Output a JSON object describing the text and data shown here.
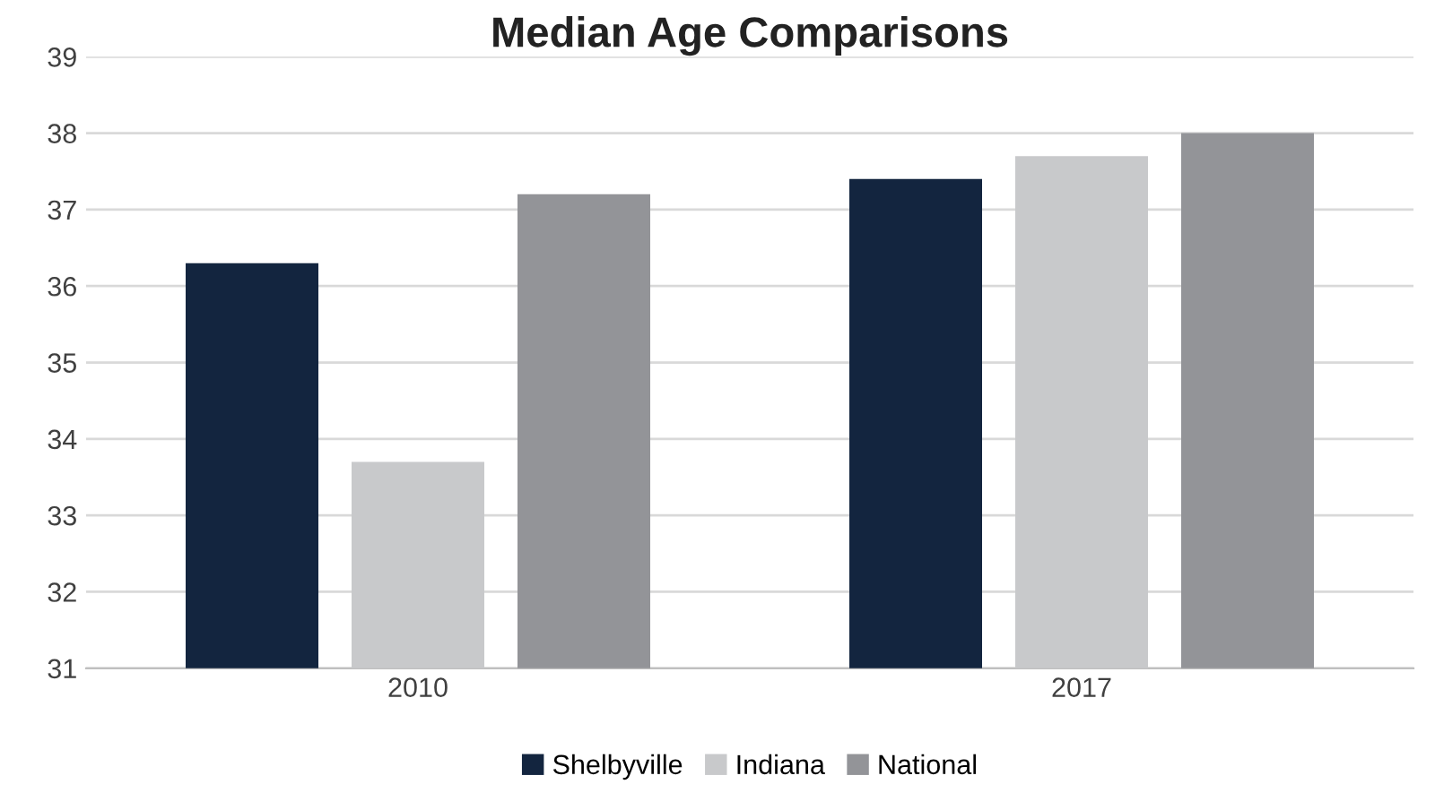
{
  "chart_data": {
    "type": "bar",
    "title": "Median Age Comparisons",
    "categories": [
      "2010",
      "2017"
    ],
    "series": [
      {
        "name": "Shelbyville",
        "color": "#13253f",
        "values": [
          36.3,
          37.4
        ]
      },
      {
        "name": "Indiana",
        "color": "#c8c9cb",
        "values": [
          33.7,
          37.7
        ]
      },
      {
        "name": "National",
        "color": "#939498",
        "values": [
          37.2,
          38.0
        ]
      }
    ],
    "ylim": [
      31,
      39
    ],
    "yticks": [
      31,
      32,
      33,
      34,
      35,
      36,
      37,
      38,
      39
    ],
    "grid": "y",
    "legend": "bottom"
  }
}
